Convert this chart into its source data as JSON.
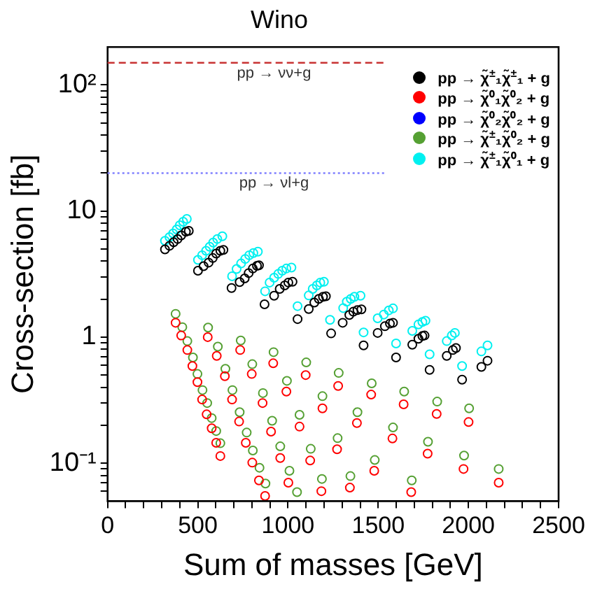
{
  "chart_data": {
    "type": "scatter",
    "title": "Wino",
    "xlabel": "Sum of masses [GeV]",
    "ylabel": "Cross-section [fb]",
    "log": "y",
    "grid": false,
    "legend": "top right",
    "marker": "circle",
    "xlim": [
      0,
      2500
    ],
    "xticks": [
      0,
      {
        "value": 100,
        "label": null
      },
      {
        "value": 200,
        "label": null
      },
      {
        "value": 300,
        "label": null
      },
      {
        "value": 400,
        "label": null
      },
      500,
      {
        "value": 600,
        "label": null
      },
      {
        "value": 700,
        "label": null
      },
      {
        "value": 800,
        "label": null
      },
      {
        "value": 900,
        "label": null
      },
      1000,
      {
        "value": 1100,
        "label": null
      },
      {
        "value": 1200,
        "label": null
      },
      {
        "value": 1300,
        "label": null
      },
      {
        "value": 1400,
        "label": null
      },
      1500,
      {
        "value": 1600,
        "label": null
      },
      {
        "value": 1700,
        "label": null
      },
      {
        "value": 1800,
        "label": null
      },
      {
        "value": 1900,
        "label": null
      },
      2000,
      {
        "value": 2100,
        "label": null
      },
      {
        "value": 2200,
        "label": null
      },
      {
        "value": 2300,
        "label": null
      },
      {
        "value": 2400,
        "label": null
      },
      2500
    ],
    "ylim": [
      0.05,
      200
    ],
    "yticks": [
      {
        "value": 0.06,
        "label": null
      },
      {
        "value": 0.07,
        "label": null
      },
      {
        "value": 0.08,
        "label": null
      },
      {
        "value": 0.09,
        "label": null
      },
      {
        "value": 0.1,
        "label": "10⁻¹"
      },
      {
        "value": 0.2,
        "label": null
      },
      {
        "value": 0.3,
        "label": null
      },
      {
        "value": 0.4,
        "label": null
      },
      {
        "value": 0.5,
        "label": null
      },
      {
        "value": 0.6,
        "label": null
      },
      {
        "value": 0.7,
        "label": null
      },
      {
        "value": 0.8,
        "label": null
      },
      {
        "value": 0.9,
        "label": null
      },
      1,
      {
        "value": 2,
        "label": null
      },
      {
        "value": 3,
        "label": null
      },
      {
        "value": 4,
        "label": null
      },
      {
        "value": 5,
        "label": null
      },
      {
        "value": 6,
        "label": null
      },
      {
        "value": 7,
        "label": null
      },
      {
        "value": 8,
        "label": null
      },
      {
        "value": 9,
        "label": null
      },
      10,
      {
        "value": 20,
        "label": null
      },
      {
        "value": 30,
        "label": null
      },
      {
        "value": 40,
        "label": null
      },
      {
        "value": 50,
        "label": null
      },
      {
        "value": 60,
        "label": null
      },
      {
        "value": 70,
        "label": null
      },
      {
        "value": 80,
        "label": null
      },
      {
        "value": 90,
        "label": null
      },
      {
        "value": 100,
        "label": "10²"
      }
    ],
    "ref_lines": [
      {
        "axis": "y",
        "value": 150,
        "label": "pp → νν+g",
        "color": "#c83232",
        "line_style": "dashed"
      },
      {
        "axis": "y",
        "value": 20,
        "label": "pp → νl+g",
        "color": "#8080ff",
        "line_style": "dotted"
      }
    ],
    "series": [
      {
        "name": "pp → χ̃$^{±}$₁χ̃$^{±}$₁ + g",
        "color": "#000000",
        "x": [
          318,
          343,
          366,
          388,
          408,
          434,
          450,
          501,
          532,
          560,
          583,
          602,
          625,
          642,
          687,
          732,
          760,
          782,
          805,
          828,
          839,
          870,
          923,
          954,
          982,
          1002,
          1025,
          1053,
          1115,
          1146,
          1171,
          1194,
          1210,
          1239,
          1303,
          1340,
          1362,
          1385,
          1407,
          1419,
          1497,
          1537,
          1565,
          1582,
          1599,
          1689,
          1723,
          1745,
          1757,
          1785,
          1880,
          1914,
          1931,
          1965,
          2072,
          2106
        ],
        "values": [
          4.96,
          5.3,
          5.66,
          6.0,
          6.41,
          6.85,
          6.97,
          3.36,
          3.65,
          3.9,
          4.24,
          4.6,
          4.84,
          4.92,
          2.45,
          2.73,
          2.92,
          3.22,
          3.5,
          3.68,
          3.71,
          1.82,
          2.13,
          2.41,
          2.57,
          2.71,
          2.75,
          1.39,
          1.67,
          1.88,
          2.01,
          2.09,
          2.11,
          1.07,
          1.3,
          1.5,
          1.59,
          1.64,
          1.66,
          0.86,
          1.08,
          1.22,
          1.28,
          1.3,
          0.69,
          0.87,
          0.97,
          1.02,
          1.03,
          0.55,
          0.71,
          0.79,
          0.82,
          0.46,
          0.58,
          0.65
        ]
      },
      {
        "name": "pp → χ̃⁰₁χ̃⁰₂ + g",
        "color": "#ff0000",
        "x": [
          377,
          408,
          442,
          470,
          498,
          524,
          549,
          577,
          602,
          625,
          555,
          605,
          650,
          690,
          729,
          766,
          802,
          839,
          873,
          735,
          799,
          859,
          906,
          957,
          1002,
          918,
          991,
          1064,
          1123,
          1185,
          1098,
          1191,
          1272,
          1343,
          1278,
          1382,
          1478,
          1461,
          1579,
          1683,
          1641,
          1774,
          1824,
          1973,
          2001,
          2168
        ],
        "values": [
          1.3,
          1.03,
          0.79,
          0.59,
          0.44,
          0.32,
          0.244,
          0.189,
          0.145,
          0.114,
          1.0,
          0.71,
          0.49,
          0.32,
          0.214,
          0.145,
          0.101,
          0.073,
          0.055,
          0.79,
          0.51,
          0.3,
          0.178,
          0.11,
          0.07,
          0.62,
          0.37,
          0.195,
          0.105,
          0.06,
          0.5,
          0.272,
          0.129,
          0.064,
          0.41,
          0.208,
          0.087,
          0.35,
          0.157,
          0.059,
          0.293,
          0.119,
          0.246,
          0.09,
          0.212,
          0.07
        ]
      },
      {
        "name": "pp → χ̃⁰₂χ̃⁰₂ + g",
        "color": "#0000ff"
      },
      {
        "name": "pp → χ̃$^{±}$₁χ̃⁰₂ + g",
        "color": "#55a033",
        "x": [
          377,
          414,
          442,
          473,
          498,
          526,
          552,
          577,
          602,
          625,
          557,
          611,
          653,
          692,
          732,
          771,
          805,
          842,
          875,
          738,
          802,
          861,
          912,
          957,
          1008,
          1050,
          920,
          994,
          1064,
          1126,
          1188,
          1101,
          1191,
          1275,
          1346,
          1281,
          1385,
          1481,
          1464,
          1582,
          1686,
          1644,
          1776,
          1827,
          1976,
          2004,
          2168
        ],
        "values": [
          1.53,
          1.2,
          0.93,
          0.69,
          0.51,
          0.38,
          0.3,
          0.228,
          0.18,
          0.144,
          1.19,
          0.84,
          0.56,
          0.38,
          0.254,
          0.175,
          0.126,
          0.092,
          0.069,
          0.94,
          0.61,
          0.36,
          0.217,
          0.136,
          0.087,
          0.059,
          0.76,
          0.45,
          0.242,
          0.13,
          0.075,
          0.63,
          0.34,
          0.158,
          0.079,
          0.52,
          0.254,
          0.106,
          0.43,
          0.192,
          0.073,
          0.37,
          0.148,
          0.308,
          0.115,
          0.272,
          0.09
        ]
      },
      {
        "name": "pp → χ̃$^{±}$₁χ̃⁰₁ + g",
        "color": "#00f0f0",
        "x": [
          318,
          343,
          363,
          383,
          400,
          419,
          439,
          501,
          524,
          546,
          566,
          585,
          608,
          636,
          690,
          715,
          740,
          763,
          785,
          808,
          833,
          873,
          898,
          923,
          946,
          968,
          991,
          1019,
          1053,
          1115,
          1137,
          1160,
          1179,
          1199,
          1233,
          1306,
          1326,
          1348,
          1368,
          1402,
          1419,
          1497,
          1531,
          1559,
          1582,
          1599,
          1689,
          1723,
          1745,
          1762,
          1785,
          1880,
          1908,
          1925,
          1965,
          2072,
          2106
        ],
        "values": [
          5.81,
          6.21,
          6.64,
          7.15,
          7.71,
          8.23,
          8.65,
          4.1,
          4.46,
          4.84,
          5.21,
          5.62,
          6.0,
          6.31,
          3.04,
          3.47,
          3.84,
          4.17,
          4.46,
          4.64,
          4.76,
          2.31,
          2.71,
          2.96,
          3.17,
          3.36,
          3.5,
          3.56,
          1.76,
          2.14,
          2.41,
          2.57,
          2.71,
          2.75,
          1.37,
          1.7,
          1.91,
          2.01,
          2.09,
          2.13,
          1.09,
          1.41,
          1.51,
          1.63,
          1.69,
          0.89,
          1.12,
          1.26,
          1.32,
          1.35,
          0.73,
          0.93,
          1.03,
          1.08,
          0.59,
          0.77,
          0.86
        ]
      }
    ]
  }
}
